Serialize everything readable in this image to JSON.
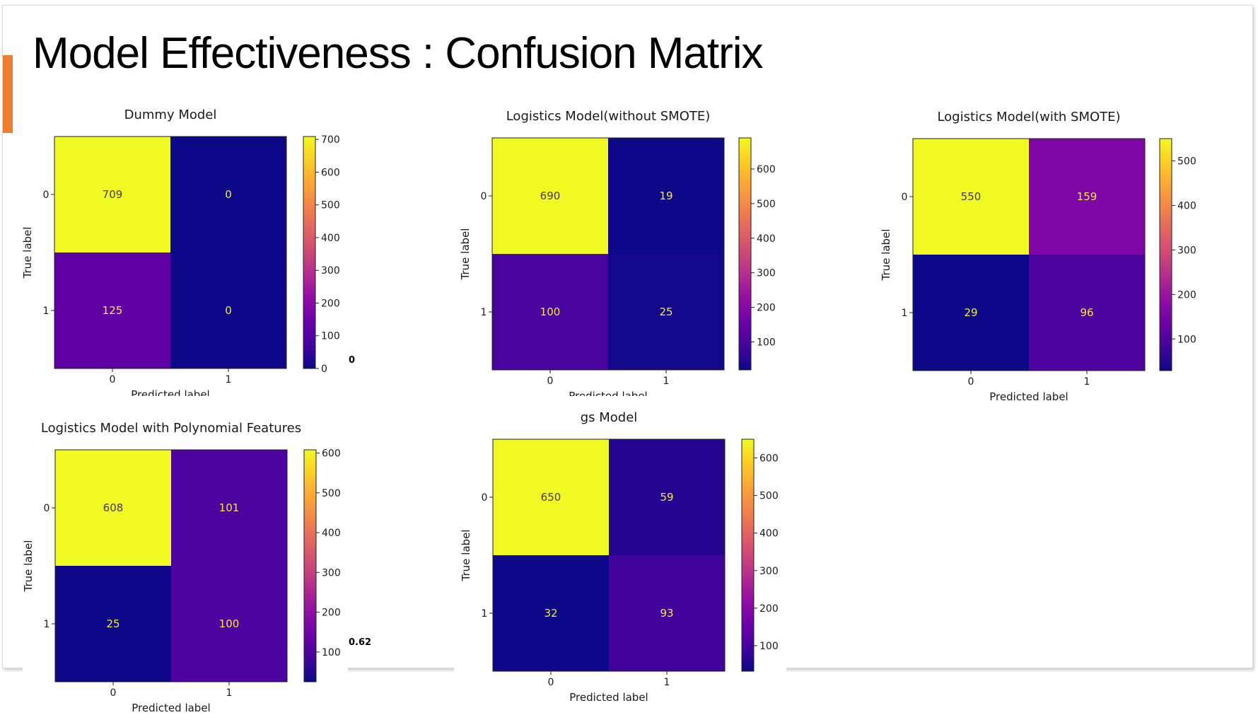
{
  "slide": {
    "title": "Model Effectiveness : Confusion Matrix",
    "notes": [
      "0",
      "0.62"
    ],
    "colors": {
      "accent": "#ee7d31",
      "colormap": "plasma"
    }
  },
  "chart_data": [
    {
      "type": "heatmap",
      "title": "Dummy Model",
      "xlabel": "Predicted label",
      "ylabel": "True label",
      "x_ticks": [
        "0",
        "1"
      ],
      "y_ticks": [
        "0",
        "1"
      ],
      "matrix": [
        [
          709,
          0
        ],
        [
          125,
          0
        ]
      ],
      "colorbar": {
        "min": 0,
        "max": 709,
        "ticks": [
          0,
          100,
          200,
          300,
          400,
          500,
          600,
          700
        ]
      }
    },
    {
      "type": "heatmap",
      "title": "Logistics Model(without SMOTE)",
      "xlabel": "Predicted label",
      "ylabel": "True label",
      "x_ticks": [
        "0",
        "1"
      ],
      "y_ticks": [
        "0",
        "1"
      ],
      "matrix": [
        [
          690,
          19
        ],
        [
          100,
          25
        ]
      ],
      "colorbar": {
        "min": 19,
        "max": 690,
        "ticks": [
          100,
          200,
          300,
          400,
          500,
          600
        ]
      }
    },
    {
      "type": "heatmap",
      "title": "Logistics Model(with SMOTE)",
      "xlabel": "Predicted label",
      "ylabel": "True label",
      "x_ticks": [
        "0",
        "1"
      ],
      "y_ticks": [
        "0",
        "1"
      ],
      "matrix": [
        [
          550,
          159
        ],
        [
          29,
          96
        ]
      ],
      "colorbar": {
        "min": 29,
        "max": 550,
        "ticks": [
          100,
          200,
          300,
          400,
          500
        ]
      }
    },
    {
      "type": "heatmap",
      "title": "Logistics Model with Polynomial Features",
      "xlabel": "Predicted label",
      "ylabel": "True label",
      "x_ticks": [
        "0",
        "1"
      ],
      "y_ticks": [
        "0",
        "1"
      ],
      "matrix": [
        [
          608,
          101
        ],
        [
          25,
          100
        ]
      ],
      "colorbar": {
        "min": 25,
        "max": 608,
        "ticks": [
          100,
          200,
          300,
          400,
          500,
          600
        ]
      }
    },
    {
      "type": "heatmap",
      "title": "gs Model",
      "xlabel": "Predicted label",
      "ylabel": "True label",
      "x_ticks": [
        "0",
        "1"
      ],
      "y_ticks": [
        "0",
        "1"
      ],
      "matrix": [
        [
          650,
          59
        ],
        [
          32,
          93
        ]
      ],
      "colorbar": {
        "min": 32,
        "max": 650,
        "ticks": [
          100,
          200,
          300,
          400,
          500,
          600
        ]
      }
    }
  ]
}
